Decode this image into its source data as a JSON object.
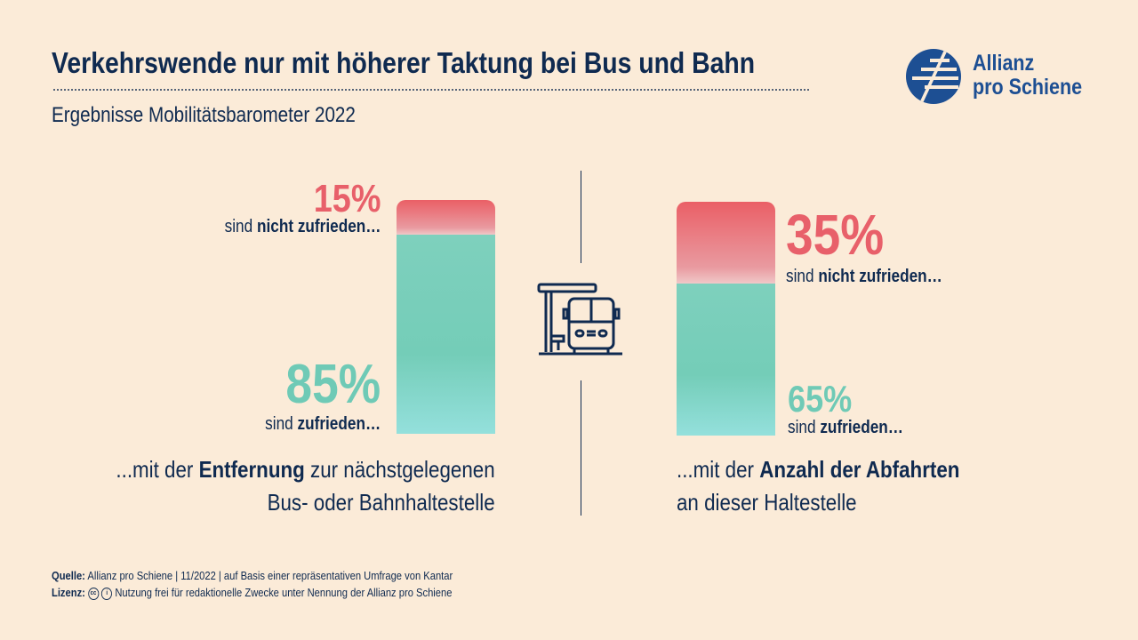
{
  "header": {
    "title": "Verkehrswende nur mit höherer Taktung bei Bus und Bahn",
    "subtitle": "Ergebnisse Mobilitätsbarometer 2022"
  },
  "logo": {
    "line1": "Allianz",
    "line2": "pro Schiene"
  },
  "colors": {
    "navy": "#0f2a50",
    "red": "#e8606a",
    "teal": "#6fcab6",
    "background": "#fbebd8"
  },
  "chart_data": {
    "type": "bar",
    "stacked": true,
    "title": "Verkehrswende nur mit höherer Taktung bei Bus und Bahn",
    "categories": [
      "Entfernung zur nächstgelegenen Bus- oder Bahnhaltestelle",
      "Anzahl der Abfahrten an dieser Haltestelle"
    ],
    "series": [
      {
        "name": "sind nicht zufrieden…",
        "values": [
          15,
          35
        ]
      },
      {
        "name": "sind zufrieden…",
        "values": [
          85,
          65
        ]
      }
    ],
    "ylim": [
      0,
      100
    ]
  },
  "left": {
    "red_pct": "15%",
    "red_pre": "sind ",
    "red_bold": "nicht zufrieden…",
    "teal_pct": "85%",
    "teal_pre": "sind ",
    "teal_bold": "zufrieden…",
    "cap_pre": "...mit der ",
    "cap_bold": "Entfernung",
    "cap_post": " zur nächstgelegenen",
    "cap_line2": "Bus- oder Bahnhaltestelle"
  },
  "right": {
    "red_pct": "35%",
    "red_pre": "sind ",
    "red_bold": "nicht zufrieden…",
    "teal_pct": "65%",
    "teal_pre": "sind ",
    "teal_bold": "zufrieden…",
    "cap_pre": "...mit der ",
    "cap_bold": "Anzahl der Abfahrten",
    "cap_line2": "an dieser Haltestelle"
  },
  "footer": {
    "source_label": "Quelle:",
    "source_text": "Allianz pro Schiene | 11/2022 | auf Basis einer repräsentativen Umfrage von Kantar",
    "license_label": "Lizenz:",
    "cc_icon": "cc",
    "license_text": "Nutzung frei für redaktionelle Zwecke unter Nennung der Allianz pro Schiene"
  }
}
